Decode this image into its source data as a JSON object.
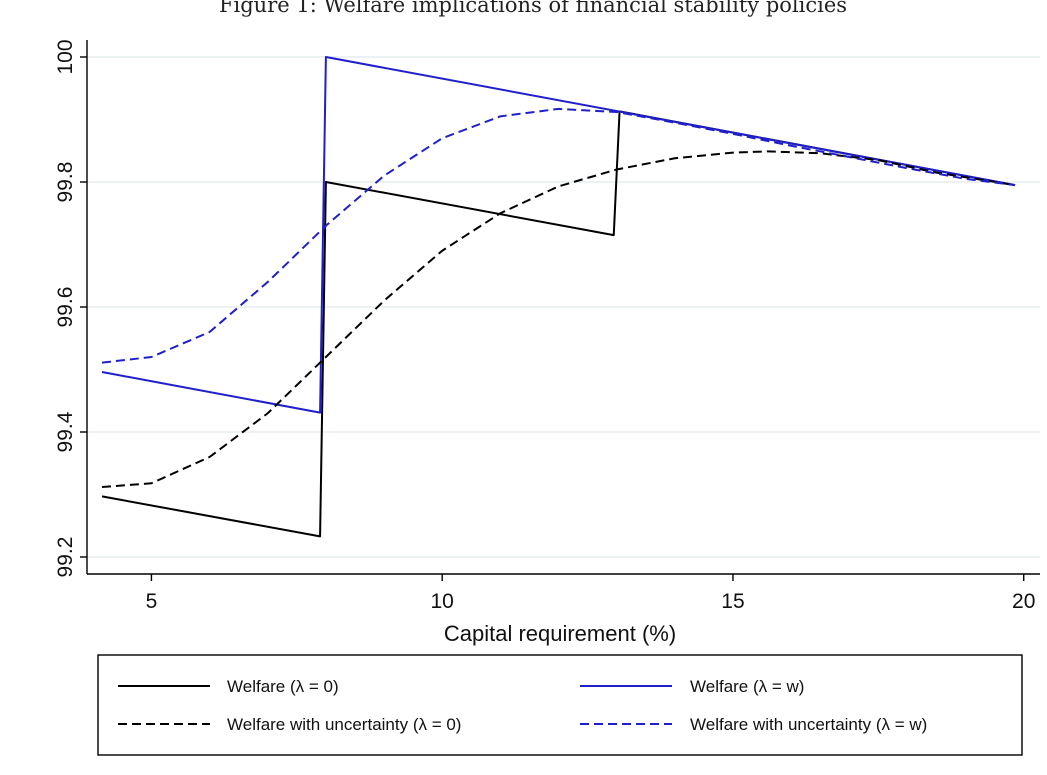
{
  "chart_data": {
    "type": "line",
    "title": "Figure 1: Welfare implications of financial stability policies",
    "xlabel": "Capital requirement (%)",
    "ylabel": "",
    "xlim": [
      4.15,
      19.85
    ],
    "ylim": [
      99.2,
      100.0
    ],
    "xticks": [
      5,
      10,
      15,
      20
    ],
    "yticks": [
      99.2,
      99.4,
      99.6,
      99.8,
      100
    ],
    "ytick_labels": [
      "99.2",
      "99.4",
      "99.6",
      "99.8",
      "100"
    ],
    "grid": "horizontal",
    "legend_position": "bottom",
    "legend_columns": 2,
    "series": [
      {
        "name": "Welfare (λ = 0)",
        "color": "#000000",
        "dash": "solid",
        "points": [
          [
            4.15,
            99.297
          ],
          [
            7.9,
            99.233
          ],
          [
            8.0,
            99.8
          ],
          [
            12.95,
            99.715
          ],
          [
            13.05,
            99.913
          ],
          [
            19.85,
            99.795
          ]
        ]
      },
      {
        "name": "Welfare (λ = w)",
        "color": "#1f1fcc",
        "dash": "solid",
        "points": [
          [
            4.15,
            99.496
          ],
          [
            7.9,
            99.431
          ],
          [
            8.0,
            100.0
          ],
          [
            19.85,
            99.795
          ]
        ]
      },
      {
        "name": "Welfare with uncertainty (λ = 0)",
        "color": "#000000",
        "dash": "dashed",
        "points": [
          [
            4.15,
            99.312
          ],
          [
            5.0,
            99.318
          ],
          [
            6.0,
            99.36
          ],
          [
            7.0,
            99.43
          ],
          [
            8.0,
            99.52
          ],
          [
            9.0,
            99.61
          ],
          [
            10.0,
            99.69
          ],
          [
            11.0,
            99.75
          ],
          [
            12.0,
            99.793
          ],
          [
            13.0,
            99.82
          ],
          [
            14.0,
            99.838
          ],
          [
            15.0,
            99.847
          ],
          [
            15.6,
            99.849
          ],
          [
            16.5,
            99.846
          ],
          [
            17.5,
            99.835
          ],
          [
            18.5,
            99.815
          ],
          [
            19.85,
            99.795
          ]
        ]
      },
      {
        "name": "Welfare with uncertainty (λ = w)",
        "color": "#1f1fcc",
        "dash": "dashed",
        "points": [
          [
            4.15,
            99.511
          ],
          [
            5.0,
            99.52
          ],
          [
            6.0,
            99.56
          ],
          [
            7.0,
            99.64
          ],
          [
            8.0,
            99.73
          ],
          [
            9.0,
            99.81
          ],
          [
            10.0,
            99.87
          ],
          [
            11.0,
            99.905
          ],
          [
            12.0,
            99.917
          ],
          [
            13.0,
            99.912
          ],
          [
            14.0,
            99.895
          ],
          [
            15.0,
            99.877
          ],
          [
            16.0,
            99.858
          ],
          [
            17.0,
            99.84
          ],
          [
            18.0,
            99.822
          ],
          [
            19.0,
            99.805
          ],
          [
            19.85,
            99.795
          ]
        ]
      }
    ]
  }
}
